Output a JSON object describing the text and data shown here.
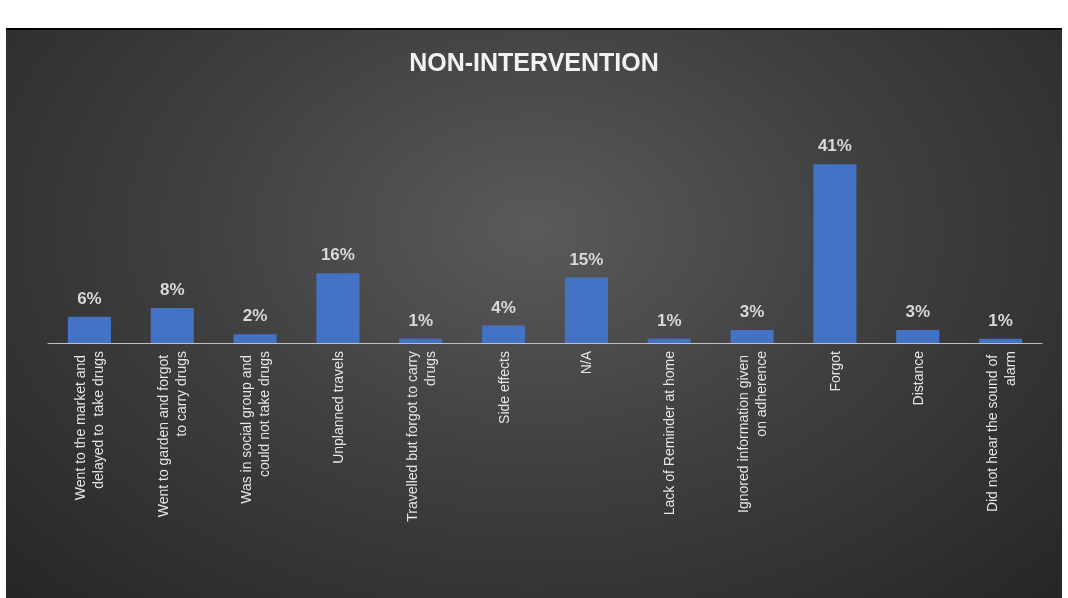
{
  "chart_data": {
    "type": "bar",
    "title": "NON-INTERVENTION",
    "categories": [
      "Went to the market and delayed to  take drugs",
      "Went to garden and forgot to carry drugs",
      "Was in social group and could not take drugs",
      "Unplanned travels",
      "Travelled but forgot to carry drugs",
      "Side effects",
      "N/A",
      "Lack of Reminder at home",
      "Ignored information given on adherence",
      "Forgot",
      "Distance",
      "Did not hear the sound of alarm"
    ],
    "values": [
      6,
      8,
      2,
      16,
      1,
      4,
      15,
      1,
      3,
      41,
      3,
      1
    ],
    "value_labels": [
      "6%",
      "8%",
      "2%",
      "16%",
      "1%",
      "4%",
      "15%",
      "1%",
      "3%",
      "41%",
      "3%",
      "1%"
    ],
    "color": "#4472c4"
  }
}
